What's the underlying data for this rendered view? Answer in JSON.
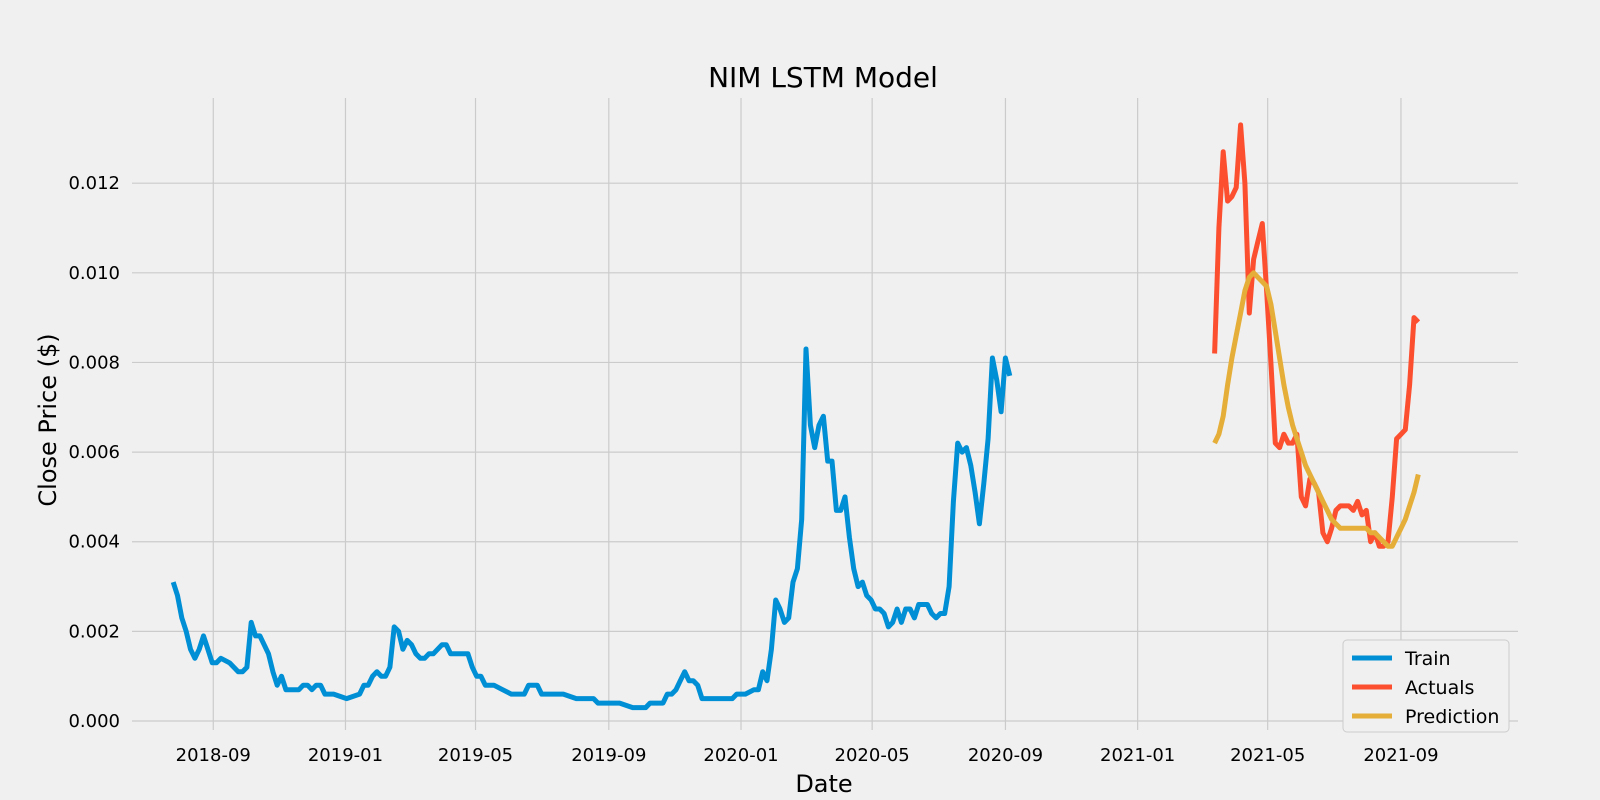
{
  "chart_data": {
    "type": "line",
    "title": "NIM LSTM Model",
    "xlabel": "Date",
    "ylabel": "Close Price ($)",
    "xlim": [
      "2018-06-18",
      "2021-12-18"
    ],
    "ylim": [
      -0.0002,
      0.0139
    ],
    "grid": true,
    "legend_position": "bottom-right",
    "x_ticks": [
      "2018-09",
      "2019-01",
      "2019-05",
      "2019-09",
      "2020-01",
      "2020-05",
      "2020-09",
      "2021-01",
      "2021-05",
      "2021-09"
    ],
    "y_ticks": [
      "0.000",
      "0.002",
      "0.004",
      "0.006",
      "0.008",
      "0.010",
      "0.012"
    ],
    "series": [
      {
        "name": "Train",
        "color": "#008fd5",
        "points": [
          [
            "2018-07-26",
            0.0031
          ],
          [
            "2018-07-30",
            0.0028
          ],
          [
            "2018-08-03",
            0.0023
          ],
          [
            "2018-08-07",
            0.002
          ],
          [
            "2018-08-11",
            0.0016
          ],
          [
            "2018-08-15",
            0.0014
          ],
          [
            "2018-08-19",
            0.0016
          ],
          [
            "2018-08-23",
            0.0019
          ],
          [
            "2018-08-27",
            0.0016
          ],
          [
            "2018-08-31",
            0.0013
          ],
          [
            "2018-09-04",
            0.0013
          ],
          [
            "2018-09-08",
            0.0014
          ],
          [
            "2018-09-16",
            0.0013
          ],
          [
            "2018-09-24",
            0.0011
          ],
          [
            "2018-09-28",
            0.0011
          ],
          [
            "2018-10-02",
            0.0012
          ],
          [
            "2018-10-06",
            0.0022
          ],
          [
            "2018-10-10",
            0.0019
          ],
          [
            "2018-10-14",
            0.0019
          ],
          [
            "2018-10-18",
            0.0017
          ],
          [
            "2018-10-22",
            0.0015
          ],
          [
            "2018-10-26",
            0.0011
          ],
          [
            "2018-10-30",
            0.0008
          ],
          [
            "2018-11-03",
            0.001
          ],
          [
            "2018-11-07",
            0.0007
          ],
          [
            "2018-11-19",
            0.0007
          ],
          [
            "2018-11-23",
            0.0008
          ],
          [
            "2018-11-27",
            0.0008
          ],
          [
            "2018-12-01",
            0.0007
          ],
          [
            "2018-12-05",
            0.0008
          ],
          [
            "2018-12-09",
            0.0008
          ],
          [
            "2018-12-13",
            0.0006
          ],
          [
            "2018-12-21",
            0.0006
          ],
          [
            "2019-01-02",
            0.0005
          ],
          [
            "2019-01-14",
            0.0006
          ],
          [
            "2019-01-18",
            0.0008
          ],
          [
            "2019-01-22",
            0.0008
          ],
          [
            "2019-01-26",
            0.001
          ],
          [
            "2019-01-30",
            0.0011
          ],
          [
            "2019-02-03",
            0.001
          ],
          [
            "2019-02-07",
            0.001
          ],
          [
            "2019-02-11",
            0.0012
          ],
          [
            "2019-02-15",
            0.0021
          ],
          [
            "2019-02-19",
            0.002
          ],
          [
            "2019-02-23",
            0.0016
          ],
          [
            "2019-02-27",
            0.0018
          ],
          [
            "2019-03-03",
            0.0017
          ],
          [
            "2019-03-07",
            0.0015
          ],
          [
            "2019-03-11",
            0.0014
          ],
          [
            "2019-03-15",
            0.0014
          ],
          [
            "2019-03-19",
            0.0015
          ],
          [
            "2019-03-23",
            0.0015
          ],
          [
            "2019-03-27",
            0.0016
          ],
          [
            "2019-03-31",
            0.0017
          ],
          [
            "2019-04-04",
            0.0017
          ],
          [
            "2019-04-08",
            0.0015
          ],
          [
            "2019-04-12",
            0.0015
          ],
          [
            "2019-04-16",
            0.0015
          ],
          [
            "2019-04-20",
            0.0015
          ],
          [
            "2019-04-24",
            0.0015
          ],
          [
            "2019-04-28",
            0.0012
          ],
          [
            "2019-05-02",
            0.001
          ],
          [
            "2019-05-06",
            0.001
          ],
          [
            "2019-05-10",
            0.0008
          ],
          [
            "2019-05-18",
            0.0008
          ],
          [
            "2019-05-26",
            0.0007
          ],
          [
            "2019-06-03",
            0.0006
          ],
          [
            "2019-06-07",
            0.0006
          ],
          [
            "2019-06-11",
            0.0006
          ],
          [
            "2019-06-15",
            0.0006
          ],
          [
            "2019-06-19",
            0.0008
          ],
          [
            "2019-06-23",
            0.0008
          ],
          [
            "2019-06-27",
            0.0008
          ],
          [
            "2019-07-01",
            0.0006
          ],
          [
            "2019-07-05",
            0.0006
          ],
          [
            "2019-07-09",
            0.0006
          ],
          [
            "2019-07-13",
            0.0006
          ],
          [
            "2019-07-17",
            0.0006
          ],
          [
            "2019-07-21",
            0.0006
          ],
          [
            "2019-08-02",
            0.0005
          ],
          [
            "2019-08-10",
            0.0005
          ],
          [
            "2019-08-14",
            0.0005
          ],
          [
            "2019-08-18",
            0.0005
          ],
          [
            "2019-08-22",
            0.0004
          ],
          [
            "2019-09-03",
            0.0004
          ],
          [
            "2019-09-11",
            0.0004
          ],
          [
            "2019-09-23",
            0.0003
          ],
          [
            "2019-10-05",
            0.0003
          ],
          [
            "2019-10-09",
            0.0004
          ],
          [
            "2019-10-17",
            0.0004
          ],
          [
            "2019-10-21",
            0.0004
          ],
          [
            "2019-10-25",
            0.0006
          ],
          [
            "2019-10-29",
            0.0006
          ],
          [
            "2019-11-02",
            0.0007
          ],
          [
            "2019-11-06",
            0.0009
          ],
          [
            "2019-11-10",
            0.0011
          ],
          [
            "2019-11-14",
            0.0009
          ],
          [
            "2019-11-18",
            0.0009
          ],
          [
            "2019-11-22",
            0.0008
          ],
          [
            "2019-11-26",
            0.0005
          ],
          [
            "2019-11-30",
            0.0005
          ],
          [
            "2019-12-04",
            0.0005
          ],
          [
            "2019-12-16",
            0.0005
          ],
          [
            "2019-12-20",
            0.0005
          ],
          [
            "2019-12-24",
            0.0005
          ],
          [
            "2019-12-28",
            0.0006
          ],
          [
            "2020-01-01",
            0.0006
          ],
          [
            "2020-01-05",
            0.0006
          ],
          [
            "2020-01-13",
            0.0007
          ],
          [
            "2020-01-17",
            0.0007
          ],
          [
            "2020-01-21",
            0.0011
          ],
          [
            "2020-01-25",
            0.0009
          ],
          [
            "2020-01-29",
            0.0016
          ],
          [
            "2020-02-02",
            0.0027
          ],
          [
            "2020-02-06",
            0.0025
          ],
          [
            "2020-02-10",
            0.0022
          ],
          [
            "2020-02-14",
            0.0023
          ],
          [
            "2020-02-18",
            0.0031
          ],
          [
            "2020-02-22",
            0.0034
          ],
          [
            "2020-02-26",
            0.0045
          ],
          [
            "2020-03-01",
            0.0083
          ],
          [
            "2020-03-05",
            0.0066
          ],
          [
            "2020-03-09",
            0.0061
          ],
          [
            "2020-03-13",
            0.0066
          ],
          [
            "2020-03-17",
            0.0068
          ],
          [
            "2020-03-21",
            0.0058
          ],
          [
            "2020-03-25",
            0.0058
          ],
          [
            "2020-03-29",
            0.0047
          ],
          [
            "2020-04-02",
            0.0047
          ],
          [
            "2020-04-06",
            0.005
          ],
          [
            "2020-04-10",
            0.0041
          ],
          [
            "2020-04-14",
            0.0034
          ],
          [
            "2020-04-18",
            0.003
          ],
          [
            "2020-04-22",
            0.0031
          ],
          [
            "2020-04-26",
            0.0028
          ],
          [
            "2020-04-30",
            0.0027
          ],
          [
            "2020-05-04",
            0.0025
          ],
          [
            "2020-05-08",
            0.0025
          ],
          [
            "2020-05-12",
            0.0024
          ],
          [
            "2020-05-16",
            0.0021
          ],
          [
            "2020-05-20",
            0.0022
          ],
          [
            "2020-05-24",
            0.0025
          ],
          [
            "2020-05-28",
            0.0022
          ],
          [
            "2020-06-01",
            0.0025
          ],
          [
            "2020-06-05",
            0.0025
          ],
          [
            "2020-06-09",
            0.0023
          ],
          [
            "2020-06-13",
            0.0026
          ],
          [
            "2020-06-17",
            0.0026
          ],
          [
            "2020-06-21",
            0.0026
          ],
          [
            "2020-06-25",
            0.0024
          ],
          [
            "2020-06-29",
            0.0023
          ],
          [
            "2020-07-03",
            0.0024
          ],
          [
            "2020-07-07",
            0.0024
          ],
          [
            "2020-07-11",
            0.003
          ],
          [
            "2020-07-15",
            0.0049
          ],
          [
            "2020-07-19",
            0.0062
          ],
          [
            "2020-07-23",
            0.006
          ],
          [
            "2020-07-27",
            0.0061
          ],
          [
            "2020-07-31",
            0.0057
          ],
          [
            "2020-08-04",
            0.0051
          ],
          [
            "2020-08-08",
            0.0044
          ],
          [
            "2020-08-12",
            0.0053
          ],
          [
            "2020-08-16",
            0.0063
          ],
          [
            "2020-08-20",
            0.0081
          ],
          [
            "2020-08-24",
            0.0076
          ],
          [
            "2020-08-28",
            0.0069
          ],
          [
            "2020-09-01",
            0.0081
          ],
          [
            "2020-09-05",
            0.0077
          ]
        ]
      },
      {
        "name": "Actuals",
        "color": "#fc4f30",
        "points": [
          [
            "2021-03-13",
            0.0082
          ],
          [
            "2021-03-17",
            0.011
          ],
          [
            "2021-03-21",
            0.0127
          ],
          [
            "2021-03-25",
            0.0116
          ],
          [
            "2021-03-29",
            0.0117
          ],
          [
            "2021-04-02",
            0.0119
          ],
          [
            "2021-04-06",
            0.0133
          ],
          [
            "2021-04-10",
            0.012
          ],
          [
            "2021-04-14",
            0.0091
          ],
          [
            "2021-04-18",
            0.0103
          ],
          [
            "2021-04-22",
            0.0107
          ],
          [
            "2021-04-26",
            0.0111
          ],
          [
            "2021-04-30",
            0.0096
          ],
          [
            "2021-05-04",
            0.008
          ],
          [
            "2021-05-08",
            0.0062
          ],
          [
            "2021-05-12",
            0.0061
          ],
          [
            "2021-05-16",
            0.0064
          ],
          [
            "2021-05-20",
            0.0062
          ],
          [
            "2021-05-24",
            0.0062
          ],
          [
            "2021-05-28",
            0.0064
          ],
          [
            "2021-06-01",
            0.005
          ],
          [
            "2021-06-05",
            0.0048
          ],
          [
            "2021-06-09",
            0.0054
          ],
          [
            "2021-06-13",
            0.0053
          ],
          [
            "2021-06-17",
            0.0051
          ],
          [
            "2021-06-21",
            0.0042
          ],
          [
            "2021-06-25",
            0.004
          ],
          [
            "2021-06-29",
            0.0043
          ],
          [
            "2021-07-03",
            0.0047
          ],
          [
            "2021-07-07",
            0.0048
          ],
          [
            "2021-07-11",
            0.0048
          ],
          [
            "2021-07-15",
            0.0048
          ],
          [
            "2021-07-19",
            0.0047
          ],
          [
            "2021-07-23",
            0.0049
          ],
          [
            "2021-07-27",
            0.0046
          ],
          [
            "2021-07-31",
            0.0047
          ],
          [
            "2021-08-04",
            0.004
          ],
          [
            "2021-08-08",
            0.0042
          ],
          [
            "2021-08-12",
            0.0039
          ],
          [
            "2021-08-16",
            0.0039
          ],
          [
            "2021-08-20",
            0.004
          ],
          [
            "2021-08-24",
            0.005
          ],
          [
            "2021-08-28",
            0.0063
          ],
          [
            "2021-09-01",
            0.0064
          ],
          [
            "2021-09-05",
            0.0065
          ],
          [
            "2021-09-09",
            0.0075
          ],
          [
            "2021-09-13",
            0.009
          ],
          [
            "2021-09-17",
            0.0089
          ]
        ]
      },
      {
        "name": "Prediction",
        "color": "#e5ae38",
        "points": [
          [
            "2021-03-13",
            0.0062
          ],
          [
            "2021-03-17",
            0.0064
          ],
          [
            "2021-03-21",
            0.0068
          ],
          [
            "2021-03-25",
            0.0075
          ],
          [
            "2021-03-29",
            0.0081
          ],
          [
            "2021-04-02",
            0.0086
          ],
          [
            "2021-04-06",
            0.0091
          ],
          [
            "2021-04-10",
            0.0096
          ],
          [
            "2021-04-14",
            0.0099
          ],
          [
            "2021-04-18",
            0.01
          ],
          [
            "2021-04-22",
            0.0099
          ],
          [
            "2021-04-26",
            0.0098
          ],
          [
            "2021-04-30",
            0.0097
          ],
          [
            "2021-05-04",
            0.0093
          ],
          [
            "2021-05-08",
            0.0087
          ],
          [
            "2021-05-12",
            0.0081
          ],
          [
            "2021-05-16",
            0.0075
          ],
          [
            "2021-05-20",
            0.007
          ],
          [
            "2021-05-24",
            0.0066
          ],
          [
            "2021-05-28",
            0.0063
          ],
          [
            "2021-06-01",
            0.006
          ],
          [
            "2021-06-05",
            0.0057
          ],
          [
            "2021-06-09",
            0.0055
          ],
          [
            "2021-06-13",
            0.0053
          ],
          [
            "2021-06-17",
            0.0051
          ],
          [
            "2021-06-21",
            0.0049
          ],
          [
            "2021-06-25",
            0.0047
          ],
          [
            "2021-06-29",
            0.0045
          ],
          [
            "2021-07-03",
            0.0044
          ],
          [
            "2021-07-07",
            0.0043
          ],
          [
            "2021-07-11",
            0.0043
          ],
          [
            "2021-07-15",
            0.0043
          ],
          [
            "2021-07-19",
            0.0043
          ],
          [
            "2021-07-23",
            0.0043
          ],
          [
            "2021-07-27",
            0.0043
          ],
          [
            "2021-07-31",
            0.0043
          ],
          [
            "2021-08-04",
            0.0042
          ],
          [
            "2021-08-08",
            0.0042
          ],
          [
            "2021-08-12",
            0.0041
          ],
          [
            "2021-08-16",
            0.004
          ],
          [
            "2021-08-20",
            0.0039
          ],
          [
            "2021-08-24",
            0.0039
          ],
          [
            "2021-08-28",
            0.0041
          ],
          [
            "2021-09-01",
            0.0043
          ],
          [
            "2021-09-05",
            0.0045
          ],
          [
            "2021-09-09",
            0.0048
          ],
          [
            "2021-09-13",
            0.0051
          ],
          [
            "2021-09-17",
            0.0055
          ]
        ]
      }
    ]
  }
}
